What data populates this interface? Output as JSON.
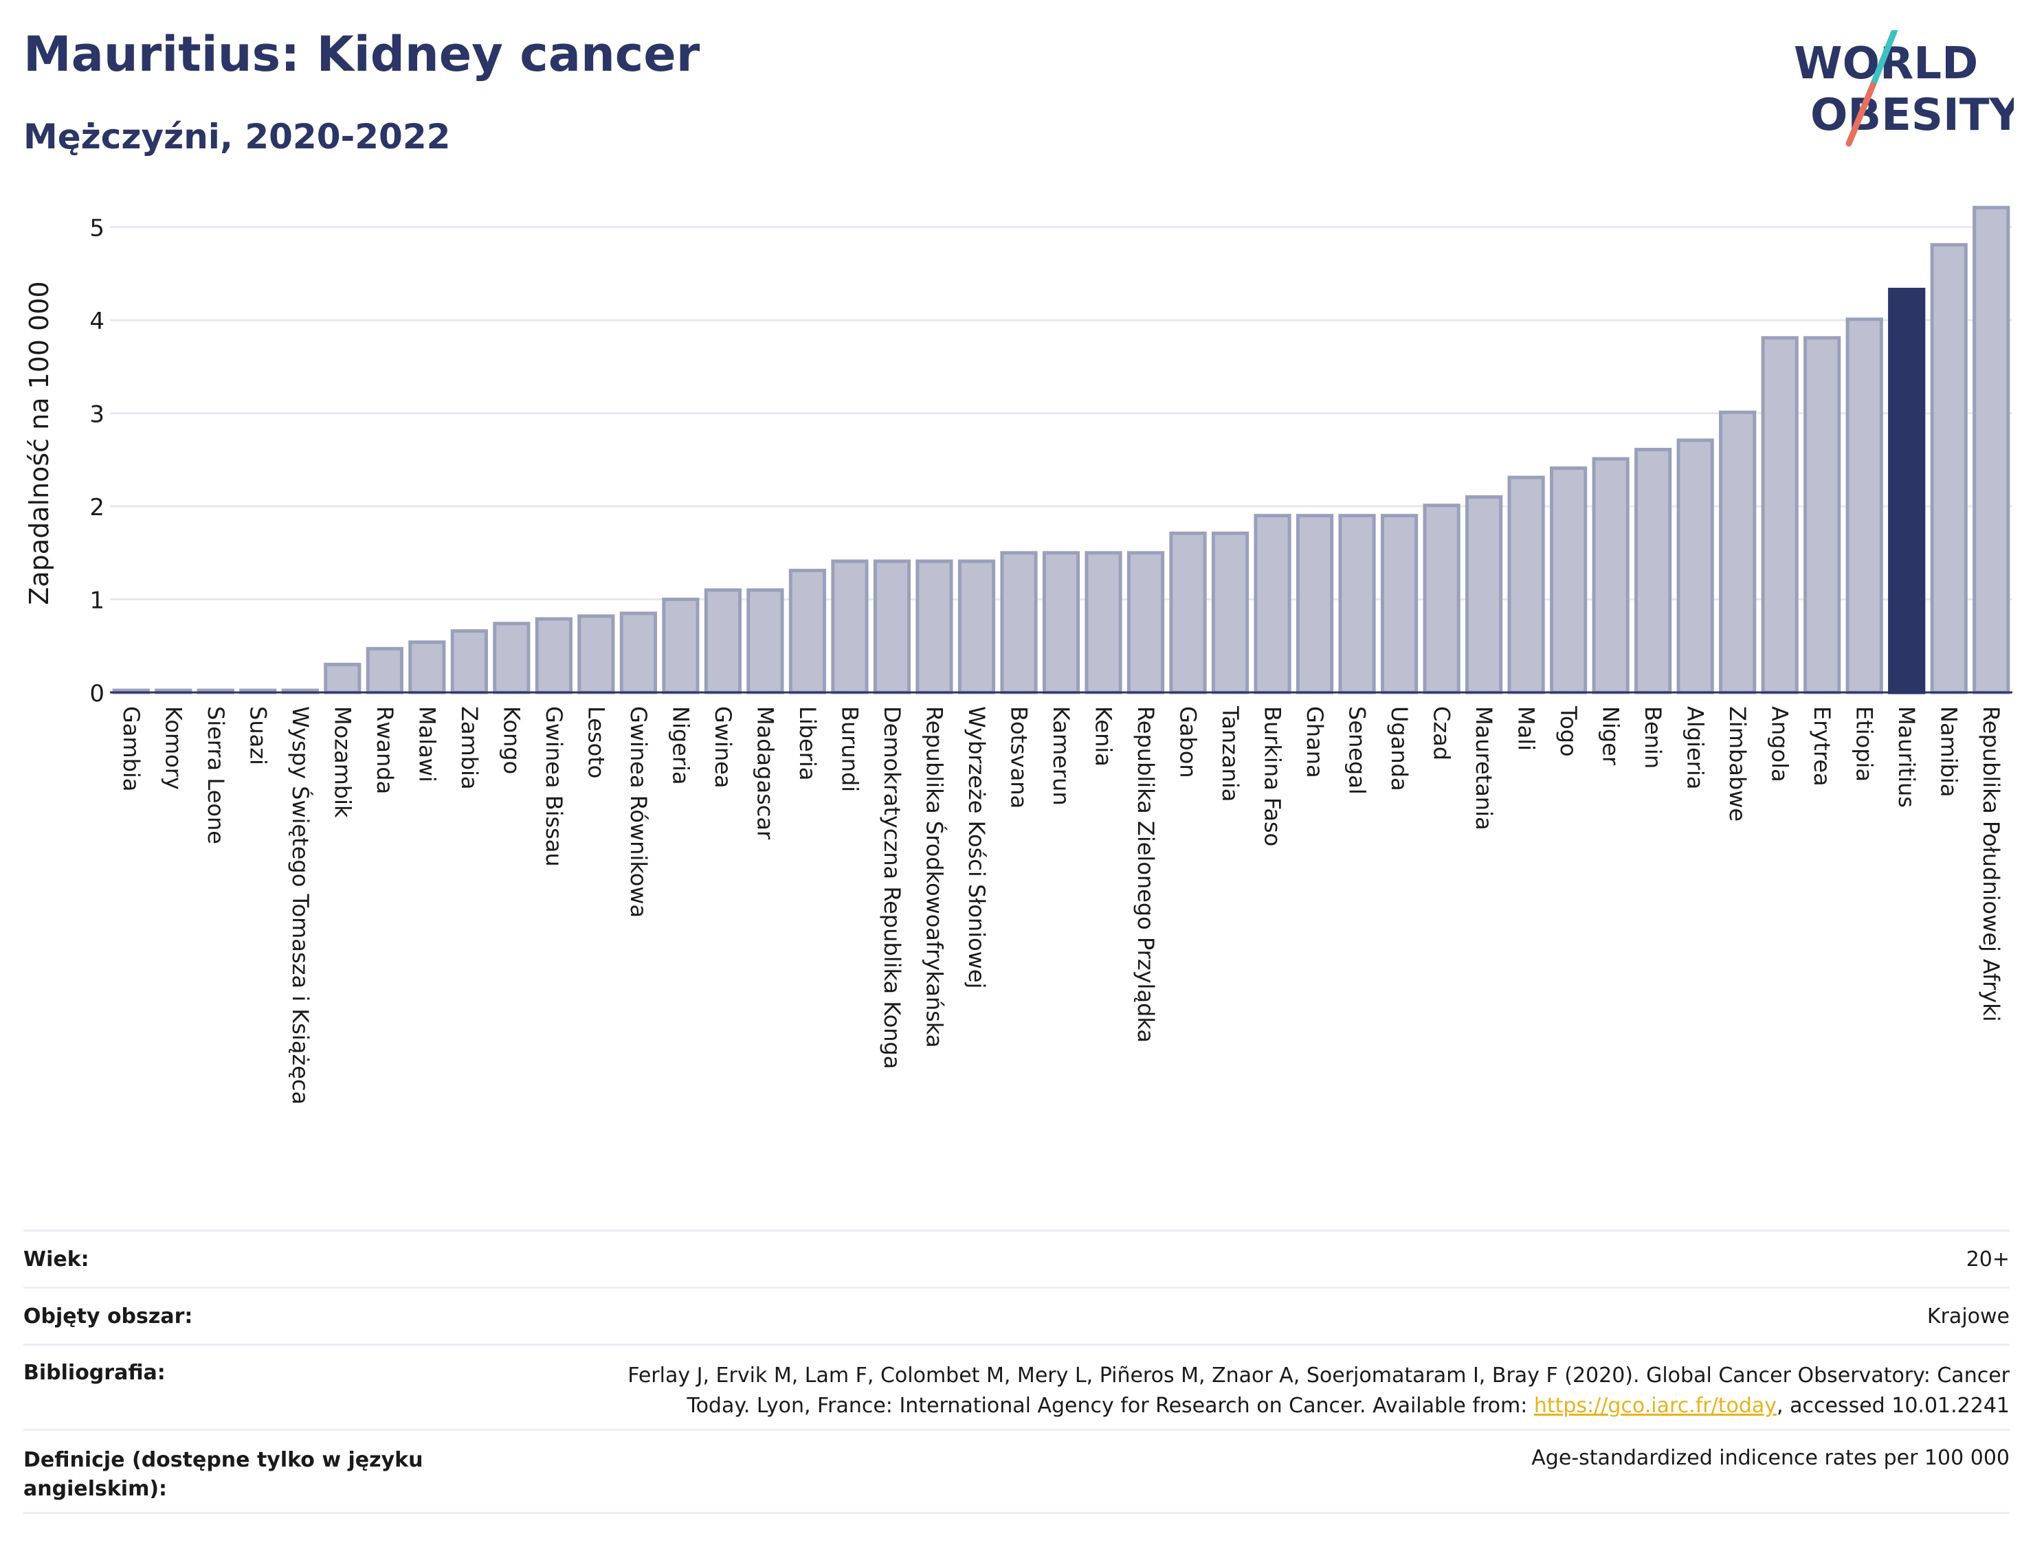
{
  "header": {
    "title": "Mauritius: Kidney cancer",
    "subtitle": "Mężczyźni, 2020-2022"
  },
  "logo": {
    "line1": "WORLD",
    "line2": "OBESITY"
  },
  "colors": {
    "highlight": "#2b3566",
    "bar_fill": "#bcc0d0",
    "bar_stroke": "#9aa0bb",
    "grid": "#e6e8ee",
    "link": "#e8b21c"
  },
  "chart_data": {
    "type": "bar",
    "ylabel": "Zapadalność na 100 000",
    "ylim": [
      0,
      5.3
    ],
    "yticks": [
      0,
      1,
      2,
      3,
      4,
      5
    ],
    "grid": true,
    "highlight": "Mauritius",
    "categories": [
      "Gambia",
      "Komory",
      "Sierra Leone",
      "Suazi",
      "Wyspy Świętego Tomasza i Książęca",
      "Mozambik",
      "Rwanda",
      "Malawi",
      "Zambia",
      "Kongo",
      "Gwinea Bissau",
      "Lesoto",
      "Gwinea Równikowa",
      "Nigeria",
      "Gwinea",
      "Madagascar",
      "Liberia",
      "Burundi",
      "Demokratyczna Republika Konga",
      "Republika Środkowoafrykańska",
      "Wybrzeże Kości Słoniowej",
      "Botsvana",
      "Kamerun",
      "Kenia",
      "Republika Zielonego Przylądka",
      "Gabon",
      "Tanzania",
      "Burkina Faso",
      "Ghana",
      "Senegal",
      "Uganda",
      "Czad",
      "Mauretania",
      "Mali",
      "Togo",
      "Niger",
      "Benin",
      "Algieria",
      "Zimbabwe",
      "Angola",
      "Erytrea",
      "Etiopia",
      "Mauritius",
      "Namibia",
      "Republika Południowej Afryki"
    ],
    "values": [
      0.02,
      0.02,
      0.02,
      0.02,
      0.02,
      0.3,
      0.47,
      0.54,
      0.66,
      0.74,
      0.79,
      0.82,
      0.85,
      1.0,
      1.1,
      1.1,
      1.31,
      1.41,
      1.41,
      1.41,
      1.41,
      1.5,
      1.5,
      1.5,
      1.5,
      1.71,
      1.71,
      1.9,
      1.9,
      1.9,
      1.9,
      2.01,
      2.1,
      2.31,
      2.41,
      2.51,
      2.61,
      2.71,
      3.01,
      3.81,
      3.81,
      4.01,
      4.33,
      4.81,
      5.21
    ]
  },
  "info": {
    "rows": [
      {
        "label": "Wiek:",
        "value": "20+"
      },
      {
        "label": "Objęty obszar:",
        "value": "Krajowe"
      },
      {
        "label": "Bibliografia:",
        "value_line1": "Ferlay J, Ervik M, Lam F, Colombet M, Mery L, Piñeros M, Znaor A, Soerjomataram I, Bray F (2020). Global Cancer Observatory: Cancer",
        "value_line2_pre": "Today. Lyon, France: International Agency for Research on Cancer. Available from: ",
        "link": "https://gco.iarc.fr/today",
        "value_line2_post": ", accessed 10.01.2241"
      },
      {
        "label": "Definicje (dostępne tylko w języku angielskim):",
        "value": "Age-standardized indicence rates per 100 000"
      }
    ]
  }
}
